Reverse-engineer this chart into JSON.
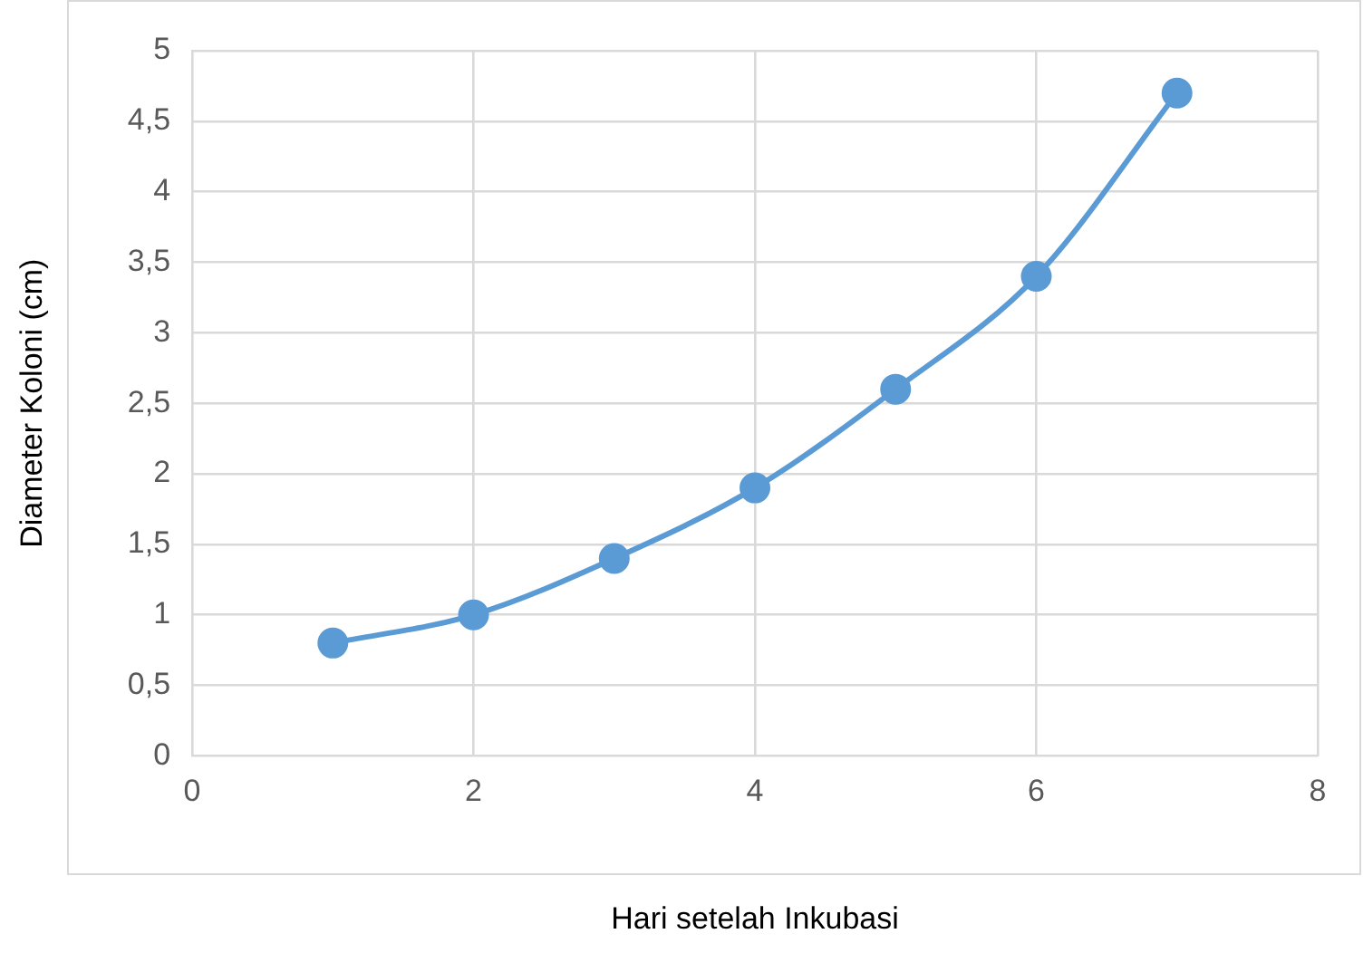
{
  "chart_data": {
    "type": "line",
    "xlabel": "Hari setelah Inkubasi",
    "ylabel": "Diameter Koloni (cm)",
    "x": [
      1,
      2,
      3,
      4,
      5,
      6,
      7
    ],
    "series": [
      {
        "color": "#5b9bd5",
        "values": [
          0.8,
          1.0,
          1.4,
          1.9,
          2.6,
          3.4,
          4.7
        ]
      }
    ],
    "xlim": [
      0,
      8
    ],
    "xticks": [
      0,
      2,
      4,
      6,
      8
    ],
    "ylim": [
      0,
      5
    ],
    "yticks": [
      0,
      {
        "value": 0.5,
        "label": "0,5"
      },
      1,
      {
        "value": 1.5,
        "label": "1,5"
      },
      2,
      {
        "value": 2.5,
        "label": "2,5"
      },
      3,
      {
        "value": 3.5,
        "label": "3,5"
      },
      4,
      {
        "value": 4.5,
        "label": "4,5"
      },
      5
    ],
    "grid": true,
    "marker": "circle",
    "line_style": "solid",
    "legend": false
  }
}
